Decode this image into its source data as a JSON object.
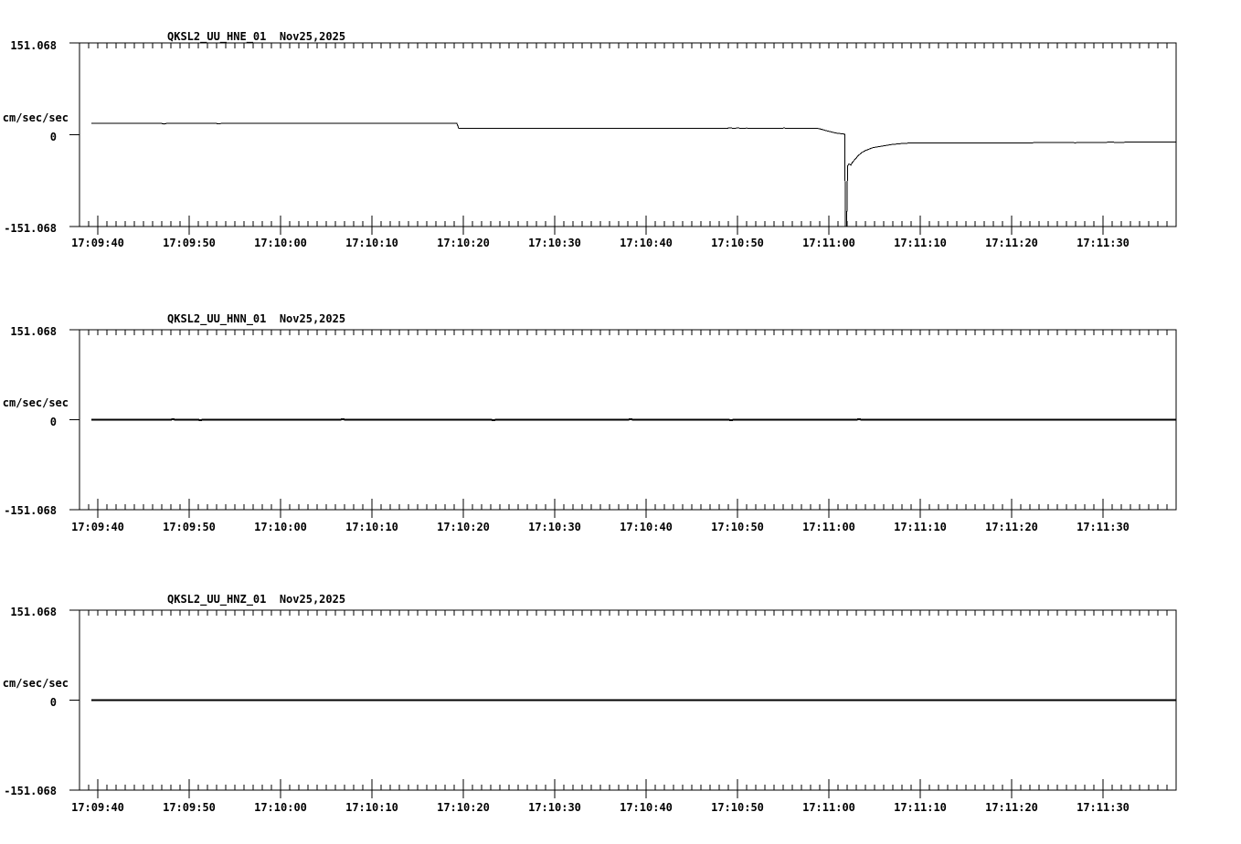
{
  "page": {
    "background": "#ffffff",
    "foreground": "#000000"
  },
  "chart_data": [
    {
      "type": "line",
      "title": "QKSL2_UU_HNE_01  Nov25,2025",
      "ylabel": "cm/sec/sec",
      "ylim": [
        -151.068,
        151.068
      ],
      "ytick_labels": [
        "151.068",
        "0",
        "-151.068"
      ],
      "x_start": "17:09:38",
      "x_duration_seconds": 120,
      "xtick_labels": [
        "17:09:40",
        "17:09:50",
        "17:10:00",
        "17:10:10",
        "17:10:20",
        "17:10:30",
        "17:10:40",
        "17:10:50",
        "17:11:00",
        "17:11:10",
        "17:11:20",
        "17:11:30"
      ],
      "xtick_offsets_seconds": [
        2,
        12,
        22,
        32,
        42,
        52,
        62,
        72,
        82,
        92,
        102,
        112
      ],
      "minor_tick_interval_seconds": 1,
      "grid": false,
      "line_color": "#000000",
      "line_width": 1,
      "series": [
        {
          "name": "HNE",
          "points": [
            [
              1.3,
              18.5
            ],
            [
              9.0,
              18.5
            ],
            [
              9.2,
              17.6
            ],
            [
              9.5,
              18.5
            ],
            [
              15.0,
              18.5
            ],
            [
              15.2,
              17.8
            ],
            [
              15.5,
              18.5
            ],
            [
              41.3,
              18.5
            ],
            [
              41.5,
              10.4
            ],
            [
              70.8,
              10.4
            ],
            [
              71.2,
              11.6
            ],
            [
              71.6,
              10.2
            ],
            [
              72.0,
              11.3
            ],
            [
              72.5,
              10.3
            ],
            [
              73.0,
              11.0
            ],
            [
              73.5,
              10.4
            ],
            [
              76.8,
              10.4
            ],
            [
              77.1,
              11.1
            ],
            [
              77.4,
              10.4
            ],
            [
              80.8,
              10.4
            ],
            [
              81.3,
              8.5
            ],
            [
              81.8,
              6.3
            ],
            [
              82.8,
              2.7
            ],
            [
              83.5,
              1.3
            ],
            [
              83.75,
              0.9
            ],
            [
              83.8,
              -151.068
            ],
            [
              83.95,
              -151.068
            ],
            [
              84.05,
              -51.5
            ],
            [
              84.2,
              -48.0
            ],
            [
              84.4,
              -50.0
            ],
            [
              84.6,
              -45.0
            ],
            [
              84.9,
              -40.0
            ],
            [
              85.2,
              -34.5
            ],
            [
              85.6,
              -29.5
            ],
            [
              86.0,
              -26.0
            ],
            [
              86.8,
              -21.3
            ],
            [
              87.8,
              -18.8
            ],
            [
              88.8,
              -16.3
            ],
            [
              89.8,
              -14.7
            ],
            [
              90.7,
              -13.8
            ],
            [
              92.0,
              -13.6
            ],
            [
              94.0,
              -13.5
            ],
            [
              97.0,
              -13.5
            ],
            [
              100.0,
              -13.4
            ],
            [
              103.0,
              -13.2
            ],
            [
              104.0,
              -13.6
            ],
            [
              104.4,
              -13.1
            ],
            [
              106.0,
              -13.0
            ],
            [
              108.0,
              -12.8
            ],
            [
              109.0,
              -13.2
            ],
            [
              109.4,
              -12.8
            ],
            [
              111.0,
              -12.6
            ],
            [
              113.0,
              -12.4
            ],
            [
              114.0,
              -12.8
            ],
            [
              114.4,
              -12.3
            ],
            [
              116.0,
              -12.1
            ],
            [
              118.0,
              -11.9
            ],
            [
              120.0,
              -11.7
            ]
          ]
        }
      ]
    },
    {
      "type": "line",
      "title": "QKSL2_UU_HNN_01  Nov25,2025",
      "ylabel": "cm/sec/sec",
      "ylim": [
        -151.068,
        151.068
      ],
      "ytick_labels": [
        "151.068",
        "0",
        "-151.068"
      ],
      "x_start": "17:09:38",
      "x_duration_seconds": 120,
      "xtick_labels": [
        "17:09:40",
        "17:09:50",
        "17:10:00",
        "17:10:10",
        "17:10:20",
        "17:10:30",
        "17:10:40",
        "17:10:50",
        "17:11:00",
        "17:11:10",
        "17:11:20",
        "17:11:30"
      ],
      "xtick_offsets_seconds": [
        2,
        12,
        22,
        32,
        42,
        52,
        62,
        72,
        82,
        92,
        102,
        112
      ],
      "minor_tick_interval_seconds": 1,
      "grid": false,
      "line_color": "#000000",
      "line_width": 2,
      "series": [
        {
          "name": "HNN",
          "points": [
            [
              1.3,
              0
            ],
            [
              10.0,
              0
            ],
            [
              10.2,
              0.9
            ],
            [
              10.5,
              0
            ],
            [
              13.0,
              0
            ],
            [
              13.2,
              -0.9
            ],
            [
              13.5,
              0
            ],
            [
              28.5,
              0
            ],
            [
              28.8,
              0.9
            ],
            [
              29.1,
              0
            ],
            [
              45.0,
              0
            ],
            [
              45.3,
              -0.9
            ],
            [
              45.6,
              0
            ],
            [
              60.0,
              0
            ],
            [
              60.3,
              0.9
            ],
            [
              60.6,
              0
            ],
            [
              71.0,
              0
            ],
            [
              71.3,
              -0.9
            ],
            [
              71.6,
              0
            ],
            [
              85.0,
              0
            ],
            [
              85.3,
              0.9
            ],
            [
              85.6,
              0
            ],
            [
              120,
              0
            ]
          ]
        }
      ]
    },
    {
      "type": "line",
      "title": "QKSL2_UU_HNZ_01  Nov25,2025",
      "ylabel": "cm/sec/sec",
      "ylim": [
        -151.068,
        151.068
      ],
      "ytick_labels": [
        "151.068",
        "0",
        "-151.068"
      ],
      "x_start": "17:09:38",
      "x_duration_seconds": 120,
      "xtick_labels": [
        "17:09:40",
        "17:09:50",
        "17:10:00",
        "17:10:10",
        "17:10:20",
        "17:10:30",
        "17:10:40",
        "17:10:50",
        "17:11:00",
        "17:11:10",
        "17:11:20",
        "17:11:30"
      ],
      "xtick_offsets_seconds": [
        2,
        12,
        22,
        32,
        42,
        52,
        62,
        72,
        82,
        92,
        102,
        112
      ],
      "minor_tick_interval_seconds": 1,
      "grid": false,
      "line_color": "#000000",
      "line_width": 2,
      "series": [
        {
          "name": "HNZ",
          "points": [
            [
              1.3,
              0
            ],
            [
              120,
              0
            ]
          ]
        }
      ]
    }
  ]
}
